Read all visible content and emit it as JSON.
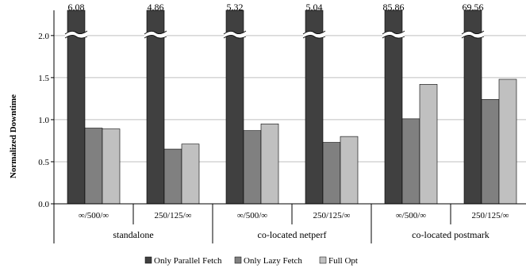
{
  "chart_data": {
    "type": "bar",
    "ylabel": "Normalized Downtime",
    "ylim": [
      0,
      2.3
    ],
    "yticks": [
      "0.0",
      "0.5",
      "1.0",
      "1.5",
      "2.0"
    ],
    "axis_break": true,
    "groups": [
      {
        "label": "standalone",
        "categories": [
          "∞/500/∞",
          "250/125/∞"
        ]
      },
      {
        "label": "co-located netperf",
        "categories": [
          "∞/500/∞",
          "250/125/∞"
        ]
      },
      {
        "label": "co-located postmark",
        "categories": [
          "∞/500/∞",
          "250/125/∞"
        ]
      }
    ],
    "series": [
      {
        "name": "Only Parallel Fetch",
        "color": "#404040",
        "values": [
          6.08,
          4.86,
          5.32,
          5.04,
          85.86,
          69.56
        ],
        "value_labels": [
          "6.08",
          "4.86",
          "5.32",
          "5.04",
          "85.86",
          "69.56"
        ]
      },
      {
        "name": "Only Lazy Fetch",
        "color": "#808080",
        "values": [
          0.9,
          0.65,
          0.87,
          0.73,
          1.01,
          1.24
        ]
      },
      {
        "name": "Full Opt",
        "color": "#c0c0c0",
        "values": [
          0.89,
          0.71,
          0.95,
          0.8,
          1.42,
          1.48
        ]
      }
    ],
    "legend_position": "bottom",
    "grid": true
  }
}
